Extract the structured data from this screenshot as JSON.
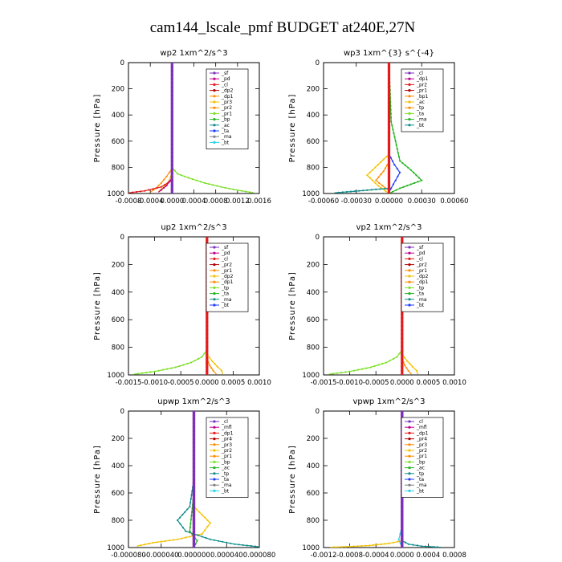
{
  "title": "cam144_lscale_pmf  BUDGET at240E,27N",
  "colors": {
    "red": "#e41a1c",
    "darkred": "#b00000",
    "purple": "#7b2fbe",
    "magenta": "#c0008c",
    "orange": "#ff8c00",
    "yellow": "#f2c200",
    "green": "#22b422",
    "lightgreen": "#7ee02a",
    "blue": "#1f3cff",
    "teal": "#128c8c",
    "cyan": "#29d3e6",
    "gray": "#7f7f7f"
  },
  "chart_data": [
    {
      "type": "line",
      "title": "wp2   1xm^2/s^3",
      "ylabel": "Pressure  [hPa]",
      "xlim": [
        -0.0008,
        0.0016
      ],
      "ylim": [
        1000,
        0
      ],
      "xticks": [
        "-0.0008",
        "-0.0004",
        "0.0000",
        "0.0004",
        "0.0008",
        "0.0012",
        "0.0016"
      ],
      "xtick_values": [
        -0.0008,
        -0.0004,
        0.0,
        0.0004,
        0.0008,
        0.0012,
        0.0016
      ],
      "yticks": [
        0,
        200,
        400,
        600,
        800,
        1000
      ],
      "legend": [
        "_sf",
        "_pd",
        "_cl",
        "_dp2",
        "_dp1",
        "_pr3",
        "_pr2",
        "_pr1",
        "_bp",
        "_ac",
        "_ta",
        "_ma",
        "_bt"
      ],
      "series": [
        {
          "name": "_dp1",
          "color": "lightgreen",
          "x": [
            0,
            0,
            0.0001,
            0.0003,
            0.0006,
            0.0009,
            0.0012,
            0.0015
          ],
          "y": [
            0,
            800,
            850,
            880,
            920,
            950,
            975,
            995
          ]
        },
        {
          "name": "_pr2",
          "color": "orange",
          "x": [
            0,
            0,
            -0.0001,
            -0.0002,
            -0.0003,
            -0.0004
          ],
          "y": [
            0,
            810,
            870,
            920,
            960,
            990
          ]
        },
        {
          "name": "_pr1",
          "color": "yellow",
          "x": [
            0,
            0,
            -5e-05,
            -0.00015,
            -0.00025
          ],
          "y": [
            0,
            840,
            900,
            950,
            985
          ]
        },
        {
          "name": "_dp2",
          "color": "red",
          "x": [
            0,
            0,
            -0.0002,
            -0.0005,
            -0.0008
          ],
          "y": [
            0,
            900,
            950,
            980,
            995
          ]
        },
        {
          "name": "_pd",
          "color": "magenta",
          "x": [
            0,
            0,
            -0.0001,
            -0.00025
          ],
          "y": [
            0,
            880,
            940,
            990
          ]
        },
        {
          "name": "_sf",
          "color": "purple",
          "x": [
            0,
            0,
            0
          ],
          "y": [
            0,
            500,
            1000
          ]
        }
      ]
    },
    {
      "type": "line",
      "title": "wp3   1xm^{3} s^{-4}",
      "ylabel": "Pressure  [hPa]",
      "xlim": [
        -0.0006,
        0.0006
      ],
      "ylim": [
        1000,
        0
      ],
      "xticks": [
        "-0.00060",
        "-0.00030",
        "0.00000",
        "0.00030",
        "0.00060"
      ],
      "xtick_values": [
        -0.0006,
        -0.0003,
        0.0,
        0.0003,
        0.0006
      ],
      "yticks": [
        0,
        200,
        400,
        600,
        800,
        1000
      ],
      "legend": [
        "_cl",
        "_dp1",
        "_pr2",
        "_pr1",
        "_bp1",
        "_ac",
        "_tp",
        "_ta",
        "_ma",
        "_bt"
      ],
      "series": [
        {
          "name": "_bp1",
          "color": "green",
          "x": [
            0,
            2e-05,
            0.0001,
            0.0002,
            0.0003,
            0.0001,
            0
          ],
          "y": [
            0,
            450,
            750,
            820,
            900,
            960,
            1000
          ]
        },
        {
          "name": "_pr2",
          "color": "yellow",
          "x": [
            0,
            0,
            -0.0001,
            -0.0002,
            -0.0001,
            0
          ],
          "y": [
            0,
            700,
            780,
            860,
            940,
            1000
          ]
        },
        {
          "name": "_pr1",
          "color": "orange",
          "x": [
            0,
            0,
            -5e-05,
            -0.00012,
            0
          ],
          "y": [
            0,
            760,
            830,
            900,
            980
          ]
        },
        {
          "name": "_tp",
          "color": "blue",
          "x": [
            0,
            0,
            5e-05,
            0.0001,
            4e-05,
            0
          ],
          "y": [
            0,
            700,
            780,
            840,
            930,
            990
          ]
        },
        {
          "name": "_ta",
          "color": "teal",
          "x": [
            0,
            -0.0002,
            -0.00035,
            -0.0005
          ],
          "y": [
            960,
            975,
            985,
            995
          ]
        },
        {
          "name": "_cl",
          "color": "red",
          "x": [
            0,
            0,
            0
          ],
          "y": [
            0,
            500,
            1000
          ]
        }
      ]
    },
    {
      "type": "line",
      "title": "up2   1xm^2/s^3",
      "ylabel": "Pressure  [hPa]",
      "xlim": [
        -0.0015,
        0.001
      ],
      "ylim": [
        1000,
        0
      ],
      "xticks": [
        "-0.0015",
        "-0.0010",
        "-0.0005",
        "0.0000",
        "0.0005",
        "0.0010"
      ],
      "xtick_values": [
        -0.0015,
        -0.001,
        -0.0005,
        0.0,
        0.0005,
        0.001
      ],
      "yticks": [
        0,
        200,
        400,
        600,
        800,
        1000
      ],
      "legend": [
        "_sf",
        "_pd",
        "_cl",
        "_pr2",
        "_pr1",
        "_dp2",
        "_dp1",
        "_tp",
        "_ta",
        "_ma",
        "_bt"
      ],
      "series": [
        {
          "name": "_dp1",
          "color": "lightgreen",
          "x": [
            0,
            0,
            -0.0001,
            -0.0003,
            -0.0006,
            -0.001,
            -0.0014
          ],
          "y": [
            0,
            820,
            870,
            910,
            945,
            975,
            995
          ]
        },
        {
          "name": "_pr1",
          "color": "yellow",
          "x": [
            0,
            0,
            0.0001,
            0.0002,
            0.00028,
            0.0003
          ],
          "y": [
            0,
            850,
            900,
            940,
            970,
            995
          ]
        },
        {
          "name": "_pr2",
          "color": "orange",
          "x": [
            0,
            0,
            5e-05,
            0.00012,
            0.00018
          ],
          "y": [
            0,
            880,
            930,
            970,
            995
          ]
        },
        {
          "name": "_pd",
          "color": "red",
          "x": [
            0,
            0,
            0
          ],
          "y": [
            0,
            500,
            1000
          ]
        }
      ]
    },
    {
      "type": "line",
      "title": "vp2   1xm^2/s^3",
      "ylabel": "Pressure  [hPa]",
      "xlim": [
        -0.0015,
        0.001
      ],
      "ylim": [
        1000,
        0
      ],
      "xticks": [
        "-0.0015",
        "-0.0010",
        "-0.0005",
        "0.0000",
        "0.0005",
        "0.0010"
      ],
      "xtick_values": [
        -0.0015,
        -0.001,
        -0.0005,
        0.0,
        0.0005,
        0.001
      ],
      "yticks": [
        0,
        200,
        400,
        600,
        800,
        1000
      ],
      "legend": [
        "_sf",
        "_pd",
        "_cl",
        "_pr2",
        "_pr1",
        "_dp2",
        "_dp1",
        "_tp",
        "_ta",
        "_ma",
        "_bt"
      ],
      "series": [
        {
          "name": "_dp1",
          "color": "lightgreen",
          "x": [
            0,
            0,
            -0.0001,
            -0.0003,
            -0.0006,
            -0.001,
            -0.0014
          ],
          "y": [
            0,
            820,
            870,
            910,
            945,
            975,
            995
          ]
        },
        {
          "name": "_pr1",
          "color": "yellow",
          "x": [
            0,
            0,
            0.0001,
            0.0002,
            0.00028,
            0.0003
          ],
          "y": [
            0,
            850,
            900,
            940,
            970,
            995
          ]
        },
        {
          "name": "_pr2",
          "color": "orange",
          "x": [
            0,
            0,
            5e-05,
            0.00012,
            0.00018
          ],
          "y": [
            0,
            880,
            930,
            970,
            995
          ]
        },
        {
          "name": "_pd",
          "color": "red",
          "x": [
            0,
            0,
            0
          ],
          "y": [
            0,
            500,
            1000
          ]
        }
      ]
    },
    {
      "type": "line",
      "title": "upwp   1xm^2/s^3",
      "ylabel": "Pressure  [hPa]",
      "xlim": [
        -8e-05,
        8e-05
      ],
      "ylim": [
        1000,
        0
      ],
      "xticks": [
        "-0.000080",
        "-0.000040",
        "0.000000",
        "0.000040",
        "0.000080"
      ],
      "xtick_values": [
        -8e-05,
        -4e-05,
        0.0,
        4e-05,
        8e-05
      ],
      "yticks": [
        0,
        200,
        400,
        600,
        800,
        1000
      ],
      "legend": [
        "_cl",
        "_mfl",
        "_dp1",
        "_pr4",
        "_pr3",
        "_pr2",
        "_pr1",
        "_bp",
        "_ac",
        "_tp",
        "_ta",
        "_ma",
        "_bt"
      ],
      "series": [
        {
          "name": "_pr1",
          "color": "yellow",
          "x": [
            0,
            2e-05,
            1e-05,
            -2e-05,
            -5e-05,
            -7e-05
          ],
          "y": [
            700,
            820,
            900,
            940,
            965,
            990
          ]
        },
        {
          "name": "_ta",
          "color": "teal",
          "x": [
            0,
            -5e-06,
            -2e-05,
            -1e-05,
            2e-05,
            5e-05,
            8e-05
          ],
          "y": [
            500,
            700,
            800,
            880,
            940,
            975,
            995
          ]
        },
        {
          "name": "_bp",
          "color": "green",
          "x": [
            0,
            0,
            -5e-06,
            4e-06,
            0
          ],
          "y": [
            0,
            600,
            880,
            950,
            1000
          ]
        },
        {
          "name": "_dp1",
          "color": "darkred",
          "x": [
            0,
            0,
            0
          ],
          "y": [
            0,
            500,
            1000
          ]
        },
        {
          "name": "_cl",
          "color": "purple",
          "x": [
            0,
            0,
            0
          ],
          "y": [
            0,
            500,
            1000
          ]
        }
      ]
    },
    {
      "type": "line",
      "title": "vpwp   1xm^2/s^3",
      "ylabel": "Pressure  [hPa]",
      "xlim": [
        -0.0012,
        0.0008
      ],
      "ylim": [
        1000,
        0
      ],
      "xticks": [
        "-0.0012",
        "-0.0008",
        "-0.0004",
        "0.0000",
        "0.0004",
        "0.0008"
      ],
      "xtick_values": [
        -0.0012,
        -0.0008,
        -0.0004,
        0.0,
        0.0004,
        0.0008
      ],
      "yticks": [
        0,
        200,
        400,
        600,
        800,
        1000
      ],
      "legend": [
        "_cl",
        "_mfl",
        "_dp1",
        "_pr4",
        "_pr3",
        "_pr2",
        "_pr1",
        "_bp",
        "_ac",
        "_tp",
        "_ta",
        "_ma",
        "_bt"
      ],
      "series": [
        {
          "name": "_pr1",
          "color": "yellow",
          "x": [
            0,
            0,
            -0.0002,
            -0.0005,
            -0.0008,
            -0.0011
          ],
          "y": [
            0,
            950,
            970,
            985,
            993,
            998
          ]
        },
        {
          "name": "_ta",
          "color": "teal",
          "x": [
            0,
            0,
            0.0001,
            0.0003,
            0.0006
          ],
          "y": [
            0,
            950,
            975,
            990,
            998
          ]
        },
        {
          "name": "_bt",
          "color": "cyan",
          "x": [
            0,
            -3e-05,
            -5e-05,
            0
          ],
          "y": [
            850,
            900,
            940,
            1000
          ]
        },
        {
          "name": "_dp1",
          "color": "darkred",
          "x": [
            0,
            0,
            0
          ],
          "y": [
            0,
            500,
            1000
          ]
        },
        {
          "name": "_cl",
          "color": "purple",
          "x": [
            0,
            0,
            0
          ],
          "y": [
            0,
            500,
            1000
          ]
        }
      ]
    }
  ]
}
